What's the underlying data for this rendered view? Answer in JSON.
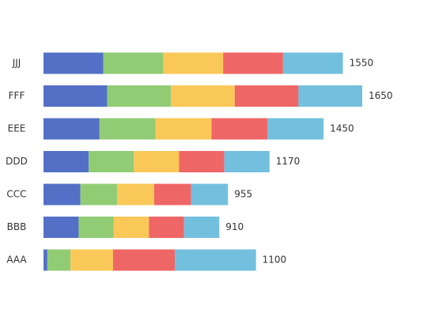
{
  "chart_data": {
    "type": "stacked-bar-horizontal",
    "categories": [
      "AAA",
      "BBB",
      "CCC",
      "DDD",
      "EEE",
      "FFF",
      "JJJ"
    ],
    "series": [
      {
        "color": "#5470c6",
        "values": [
          20,
          182,
          191,
          234,
          290,
          330,
          310
        ]
      },
      {
        "color": "#91cc75",
        "values": [
          120,
          182,
          191,
          234,
          290,
          330,
          310
        ]
      },
      {
        "color": "#fac858",
        "values": [
          220,
          182,
          191,
          234,
          290,
          330,
          310
        ]
      },
      {
        "color": "#ee6666",
        "values": [
          320,
          182,
          191,
          234,
          290,
          330,
          310
        ]
      },
      {
        "color": "#73c0de",
        "values": [
          420,
          182,
          191,
          234,
          290,
          330,
          310
        ]
      }
    ],
    "totals": [
      1100,
      910,
      955,
      1170,
      1450,
      1650,
      1550
    ]
  }
}
